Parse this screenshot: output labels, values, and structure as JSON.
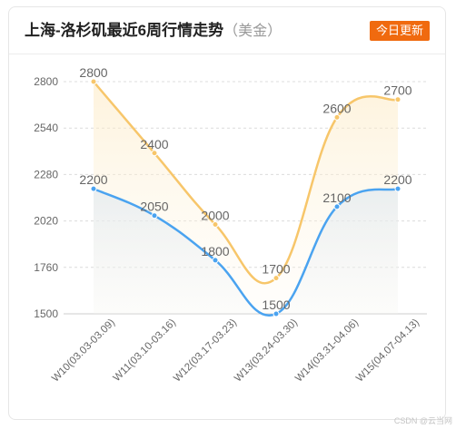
{
  "header": {
    "title": "上海-洛杉矶最近6周行情走势",
    "subtitle": "（美金）",
    "badge_label": "今日更新"
  },
  "watermark": "CSDN @云当网",
  "colors": {
    "series_upper": "#f7c66a",
    "series_lower": "#4aa3f0",
    "badge": "#f06a0f",
    "grid": "#dddddd",
    "axis_text": "#666666"
  },
  "chart_data": {
    "type": "line",
    "title": "上海-洛杉矶最近6周行情走势",
    "xlabel": "",
    "ylabel": "",
    "categories": [
      "W10(03.03-03.09)",
      "W11(03.10-03.16)",
      "W12(03.17-03.23)",
      "W13(03.24-03.30)",
      "W14(03.31-04.06)",
      "W15(04.07-04.13)"
    ],
    "yticks": [
      1500,
      1760,
      2020,
      2280,
      2540,
      2800
    ],
    "ylim": [
      1500,
      2800
    ],
    "smooth": true,
    "area_fill": true,
    "grid": "horizontal-dashed",
    "legend": "none",
    "series": [
      {
        "values": [
          2800,
          2400,
          2000,
          1700,
          2600,
          2700
        ],
        "color": "#f7c66a"
      },
      {
        "values": [
          2200,
          2050,
          1800,
          1500,
          2100,
          2200
        ],
        "color": "#4aa3f0"
      }
    ]
  }
}
